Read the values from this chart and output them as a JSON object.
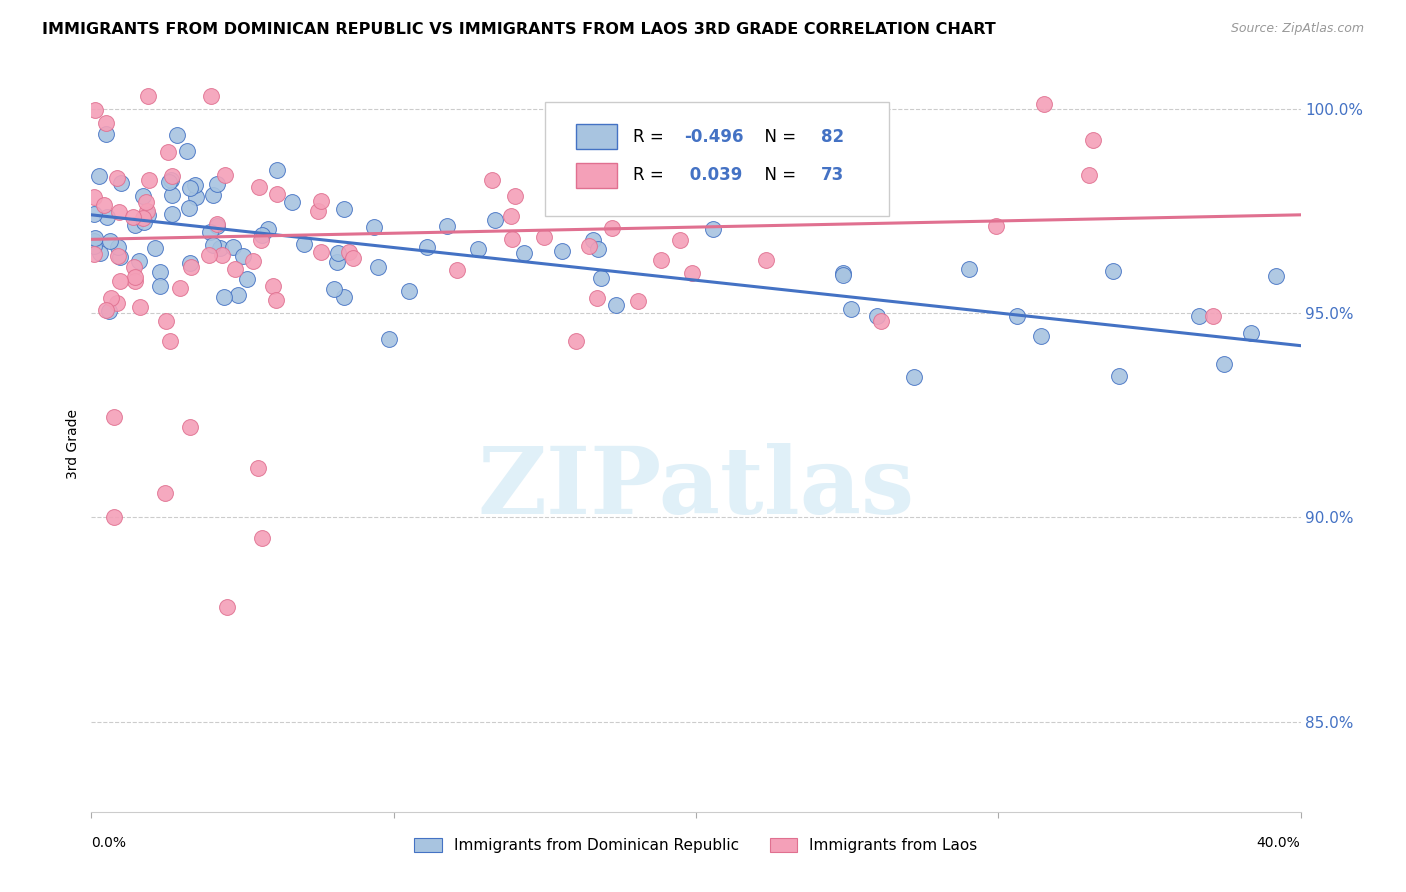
{
  "title": "IMMIGRANTS FROM DOMINICAN REPUBLIC VS IMMIGRANTS FROM LAOS 3RD GRADE CORRELATION CHART",
  "source": "Source: ZipAtlas.com",
  "ylabel": "3rd Grade",
  "xlim": [
    0.0,
    0.4
  ],
  "ylim": [
    0.828,
    1.008
  ],
  "blue_scatter_color": "#a8c4e0",
  "blue_line_color": "#4472c4",
  "pink_scatter_color": "#f4a0b8",
  "pink_line_color": "#e07090",
  "legend_r_color": "#4472c4",
  "legend_n_color": "#4472c4",
  "legend_blue_r": "-0.496",
  "legend_blue_n": "82",
  "legend_pink_r": " 0.039",
  "legend_pink_n": "73",
  "right_axis_color": "#4472c4",
  "grid_color": "#cccccc",
  "background_color": "#ffffff",
  "watermark_text": "ZIPatlas",
  "watermark_color": "#d0e8f5",
  "ytick_positions": [
    0.85,
    0.9,
    0.95,
    1.0
  ],
  "ytick_labels": [
    "85.0%",
    "90.0%",
    "95.0%",
    "100.0%"
  ],
  "blue_trend_y0": 0.974,
  "blue_trend_y1": 0.942,
  "pink_trend_y0": 0.968,
  "pink_trend_y1": 0.974
}
